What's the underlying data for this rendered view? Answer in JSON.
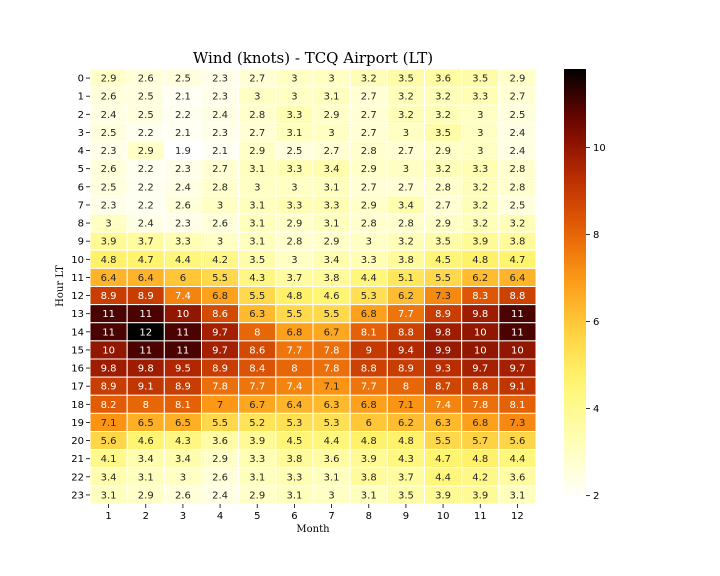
{
  "chart_data": {
    "type": "heatmap",
    "title": "Wind (knots) - TCQ Airport (LT)",
    "xlabel": "Month",
    "ylabel": "Hour LT",
    "x": [
      "1",
      "2",
      "3",
      "4",
      "5",
      "6",
      "7",
      "8",
      "9",
      "10",
      "11",
      "12"
    ],
    "y": [
      "0",
      "1",
      "2",
      "3",
      "4",
      "5",
      "6",
      "7",
      "8",
      "9",
      "10",
      "11",
      "12",
      "13",
      "14",
      "15",
      "16",
      "17",
      "18",
      "19",
      "20",
      "21",
      "22",
      "23"
    ],
    "values": [
      [
        2.9,
        2.6,
        2.5,
        2.3,
        2.7,
        3,
        3,
        3.2,
        3.5,
        3.6,
        3.5,
        2.9
      ],
      [
        2.6,
        2.5,
        2.1,
        2.3,
        3,
        3,
        3.1,
        2.7,
        3.2,
        3.2,
        3.3,
        2.7
      ],
      [
        2.4,
        2.5,
        2.2,
        2.4,
        2.8,
        3.3,
        2.9,
        2.7,
        3.2,
        3.2,
        3,
        2.5
      ],
      [
        2.5,
        2.2,
        2.1,
        2.3,
        2.7,
        3.1,
        3,
        2.7,
        3,
        3.5,
        3,
        2.4
      ],
      [
        2.3,
        2.9,
        1.9,
        2.1,
        2.9,
        2.5,
        2.7,
        2.8,
        2.7,
        2.9,
        3,
        2.4
      ],
      [
        2.6,
        2.2,
        2.3,
        2.7,
        3.1,
        3.3,
        3.4,
        2.9,
        3,
        3.2,
        3.3,
        2.8
      ],
      [
        2.5,
        2.2,
        2.4,
        2.8,
        3,
        3,
        3.1,
        2.7,
        2.7,
        2.8,
        3.2,
        2.8
      ],
      [
        2.3,
        2.2,
        2.6,
        3,
        3.1,
        3.3,
        3.3,
        2.9,
        3.4,
        2.7,
        3.2,
        2.5
      ],
      [
        3,
        2.4,
        2.3,
        2.6,
        3.1,
        2.9,
        3.1,
        2.8,
        2.8,
        2.9,
        3.2,
        3.2
      ],
      [
        3.9,
        3.7,
        3.3,
        3,
        3.1,
        2.8,
        2.9,
        3,
        3.2,
        3.5,
        3.9,
        3.8
      ],
      [
        4.8,
        4.7,
        4.4,
        4.2,
        3.5,
        3,
        3.4,
        3.3,
        3.8,
        4.5,
        4.8,
        4.7
      ],
      [
        6.4,
        6.4,
        6,
        5.5,
        4.3,
        3.7,
        3.8,
        4.4,
        5.1,
        5.5,
        6.2,
        6.4
      ],
      [
        8.9,
        8.9,
        7.4,
        6.8,
        5.5,
        4.8,
        4.6,
        5.3,
        6.2,
        7.3,
        8.3,
        8.8
      ],
      [
        11,
        11,
        10,
        8.6,
        6.3,
        5.5,
        5.5,
        6.8,
        7.7,
        8.9,
        9.8,
        11
      ],
      [
        11,
        12,
        11,
        9.7,
        8,
        6.8,
        6.7,
        8.1,
        8.8,
        9.8,
        10,
        11
      ],
      [
        10,
        11,
        11,
        9.7,
        8.6,
        7.7,
        7.8,
        9,
        9.4,
        9.9,
        10,
        10
      ],
      [
        9.8,
        9.8,
        9.5,
        8.9,
        8.4,
        8,
        7.8,
        8.8,
        8.9,
        9.3,
        9.7,
        9.7
      ],
      [
        8.9,
        9.1,
        8.9,
        7.8,
        7.7,
        7.4,
        7.1,
        7.7,
        8,
        8.7,
        8.8,
        9.1
      ],
      [
        8.2,
        8,
        8.1,
        7,
        6.7,
        6.4,
        6.3,
        6.8,
        7.1,
        7.4,
        7.8,
        8.1
      ],
      [
        7.1,
        6.5,
        6.5,
        5.5,
        5.2,
        5.3,
        5.3,
        6,
        6.2,
        6.3,
        6.8,
        7.3
      ],
      [
        5.6,
        4.6,
        4.3,
        3.6,
        3.9,
        4.5,
        4.4,
        4.8,
        4.8,
        5.5,
        5.7,
        5.6
      ],
      [
        4.1,
        3.4,
        3.4,
        2.9,
        3.3,
        3.8,
        3.6,
        3.9,
        4.3,
        4.7,
        4.8,
        4.4
      ],
      [
        3.4,
        3.1,
        3,
        2.6,
        3.1,
        3.3,
        3.1,
        3.8,
        3.7,
        4.4,
        4.2,
        3.6
      ],
      [
        3.1,
        2.9,
        2.6,
        2.4,
        2.9,
        3.1,
        3,
        3.1,
        3.5,
        3.9,
        3.9,
        3.1
      ]
    ],
    "color_range": [
      1.9,
      11.8
    ],
    "colorbar_ticks": [
      "2",
      "4",
      "6",
      "8",
      "10"
    ],
    "colormap": "afmhot_r",
    "grid": true
  }
}
